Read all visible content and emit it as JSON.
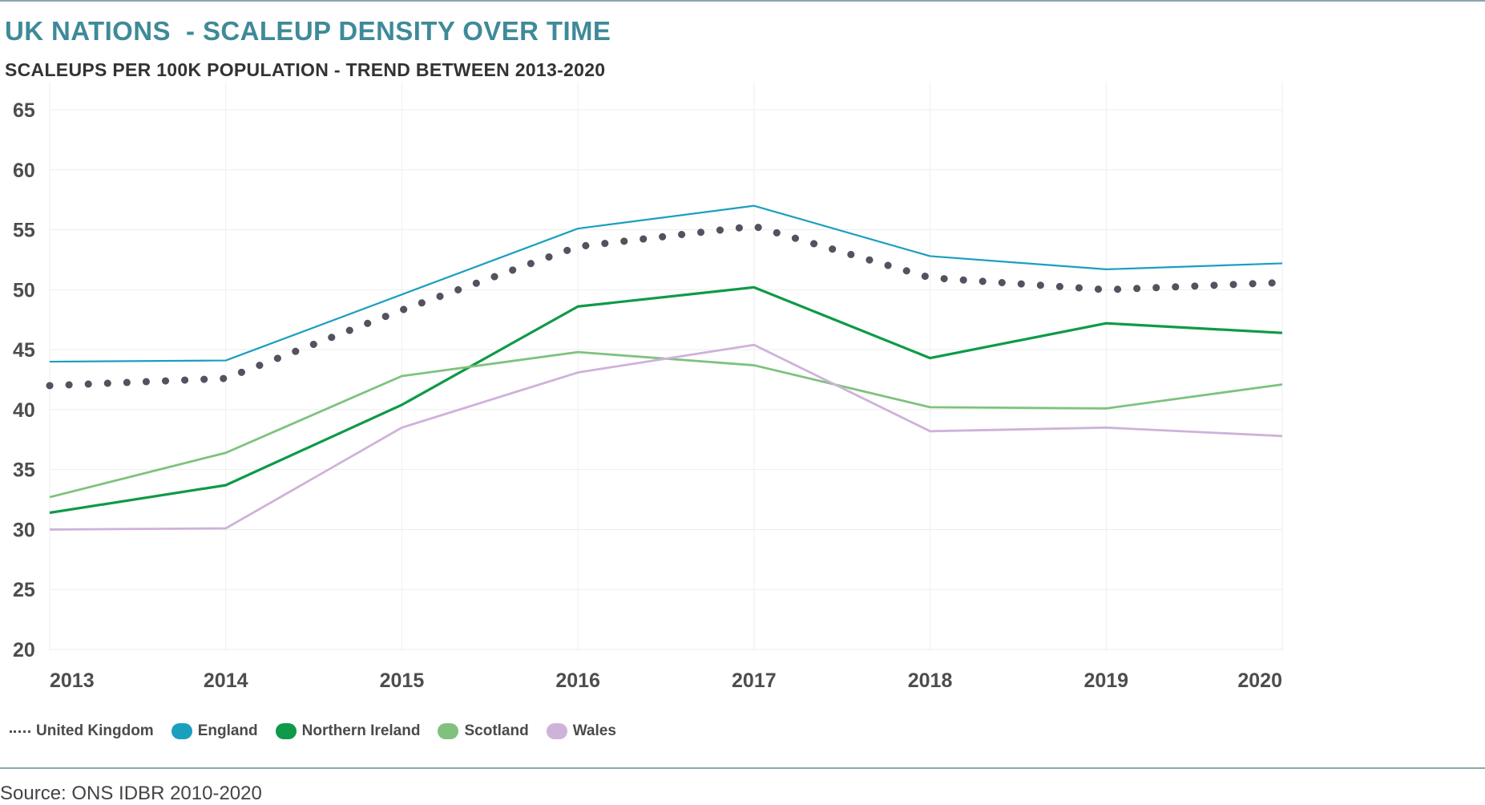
{
  "title": "UK NATIONS  - SCALEUP DENSITY OVER TIME",
  "subtitle": "SCALEUPS PER 100K POPULATION - TREND BETWEEN 2013-2020",
  "source": "Source: ONS IDBR 2010-2020",
  "chart_data": {
    "type": "line",
    "title": "UK NATIONS  - SCALEUP DENSITY OVER TIME",
    "subtitle": "SCALEUPS PER 100K POPULATION - TREND BETWEEN 2013-2020",
    "xlabel": "",
    "ylabel": "",
    "x": [
      "2013",
      "2014",
      "2015",
      "2016",
      "2017",
      "2018",
      "2019",
      "2020"
    ],
    "ylim": [
      20,
      65
    ],
    "yticks": [
      20,
      25,
      30,
      35,
      40,
      45,
      50,
      55,
      60,
      65
    ],
    "grid": "vertical and horizontal, light",
    "legend": "bottom-left",
    "series": [
      {
        "name": "United Kingdom",
        "color": "#53525e",
        "style": "dotted",
        "values": [
          42.0,
          42.6,
          48.3,
          53.6,
          55.3,
          51.0,
          50.0,
          50.6
        ]
      },
      {
        "name": "England",
        "color": "#1a9fbf",
        "style": "solid",
        "values": [
          44.0,
          44.1,
          49.6,
          55.1,
          57.0,
          52.8,
          51.7,
          52.2
        ]
      },
      {
        "name": "Northern Ireland",
        "color": "#0e9a48",
        "style": "solid",
        "values": [
          31.4,
          33.7,
          40.4,
          48.6,
          50.2,
          44.3,
          47.2,
          46.4
        ]
      },
      {
        "name": "Scotland",
        "color": "#7ec27e",
        "style": "solid",
        "values": [
          32.7,
          36.4,
          42.8,
          44.8,
          43.7,
          40.2,
          40.1,
          42.1
        ]
      },
      {
        "name": "Wales",
        "color": "#cfb2d9",
        "style": "solid",
        "values": [
          30.0,
          30.1,
          38.5,
          43.1,
          45.4,
          38.2,
          38.5,
          37.8
        ]
      }
    ]
  }
}
